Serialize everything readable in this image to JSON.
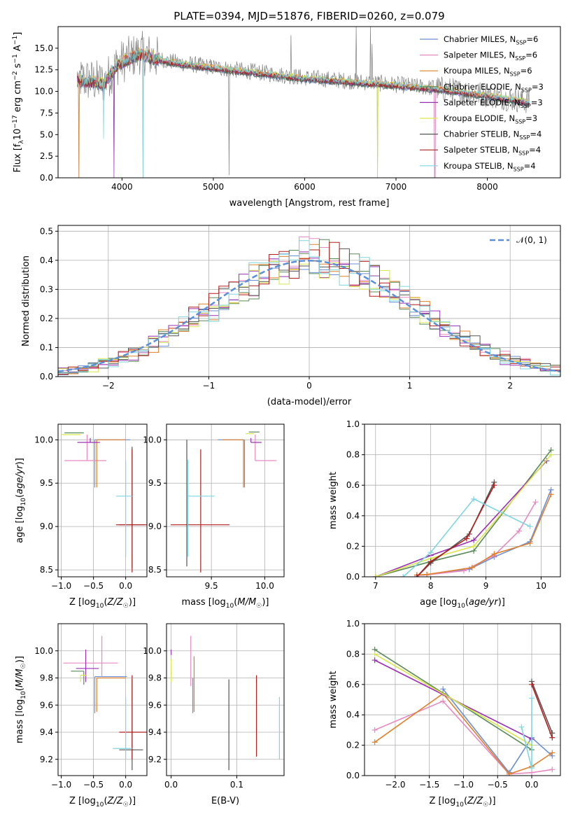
{
  "figure_title": "PLATE=0394, MJD=51876, FIBERID=0260, z=0.079",
  "legend_entries": [
    {
      "label": "Chabrier MILES, N",
      "sub": "SSP",
      "suffix": "=6",
      "color": "#6b8fd6"
    },
    {
      "label": "Salpeter MILES, N",
      "sub": "SSP",
      "suffix": "=6",
      "color": "#e78ac3"
    },
    {
      "label": "Kroupa MILES, N",
      "sub": "SSP",
      "suffix": "=6",
      "color": "#e0812a"
    },
    {
      "label": "Chabrier ELODIE, N",
      "sub": "SSP",
      "suffix": "=3",
      "color": "#5a8a5a"
    },
    {
      "label": "Salpeter ELODIE, N",
      "sub": "SSP",
      "suffix": "=3",
      "color": "#9b30b5"
    },
    {
      "label": "Kroupa ELODIE, N",
      "sub": "SSP",
      "suffix": "=3",
      "color": "#d9e64c"
    },
    {
      "label": "Chabrier STELIB, N",
      "sub": "SSP",
      "suffix": "=4",
      "color": "#555555"
    },
    {
      "label": "Salpeter STELIB, N",
      "sub": "SSP",
      "suffix": "=4",
      "color": "#b21e1e"
    },
    {
      "label": "Kroupa STELIB, N",
      "sub": "SSP",
      "suffix": "=4",
      "color": "#7fd6e0"
    }
  ],
  "chart_data": [
    {
      "id": "spectrum",
      "type": "line",
      "xlabel": "wavelength [Angstrom, rest frame]",
      "ylabel": "Flux [f_λ10^-17 erg cm^-2 s^-1 A^-1]",
      "xlim": [
        3300,
        8800
      ],
      "ylim": [
        0,
        17.5
      ],
      "xticks": [
        4000,
        5000,
        6000,
        7000,
        8000
      ],
      "yticks": [
        0.0,
        2.5,
        5.0,
        7.5,
        10.0,
        12.5,
        15.0
      ],
      "grid": false,
      "data_color": "#808080",
      "continuum": [
        [
          3500,
          11.5
        ],
        [
          3800,
          11.0
        ],
        [
          3950,
          13.2
        ],
        [
          4200,
          14.5
        ],
        [
          4500,
          13.5
        ],
        [
          5000,
          12.8
        ],
        [
          5500,
          12.2
        ],
        [
          6000,
          11.6
        ],
        [
          6500,
          11.2
        ],
        [
          7000,
          10.8
        ],
        [
          7500,
          10.3
        ],
        [
          8000,
          9.6
        ],
        [
          8450,
          8.8
        ]
      ],
      "dips": [
        [
          3526,
          0.0
        ],
        [
          3910,
          3.0
        ],
        [
          4230,
          0.0
        ],
        [
          5170,
          0.3
        ],
        [
          6800,
          0.0
        ],
        [
          7425,
          0.0
        ]
      ],
      "spikes": [
        [
          5850,
          16.5
        ],
        [
          6565,
          17.5
        ],
        [
          6720,
          17.5
        ],
        [
          6740,
          15.5
        ]
      ]
    },
    {
      "id": "residuals",
      "type": "line",
      "xlabel": "(data-model)/error",
      "ylabel": "Normed distribution",
      "xlim": [
        -2.5,
        2.5
      ],
      "ylim": [
        0,
        0.52
      ],
      "xticks": [
        -2,
        -1,
        0,
        1,
        2
      ],
      "yticks": [
        0.0,
        0.1,
        0.2,
        0.3,
        0.4,
        0.5
      ],
      "grid": true,
      "gaussian_label": "𝒩(0, 1)",
      "gaussian_color": "#5b8fd6",
      "bin_width": 0.1
    },
    {
      "id": "age_vs_Z",
      "type": "scatter",
      "xlabel": "Z [log10(Z/Z☉)]",
      "ylabel": "age  [log10(age/yr)]",
      "xlim": [
        -1.05,
        0.33
      ],
      "ylim": [
        8.42,
        10.18
      ],
      "xticks": [
        -1.0,
        -0.5,
        0.0
      ],
      "yticks": [
        8.5,
        9.0,
        9.5,
        10.0
      ],
      "grid": true,
      "points": [
        {
          "x": -0.48,
          "y": 10.0,
          "xerr": [
            0.0,
            0.55
          ],
          "yerr": [
            0.55,
            0.0
          ],
          "color": "#6b8fd6"
        },
        {
          "x": -0.6,
          "y": 9.76,
          "xerr": [
            0.35,
            0.3
          ],
          "yerr": [
            0.0,
            0.3
          ],
          "color": "#e78ac3"
        },
        {
          "x": -0.45,
          "y": 10.0,
          "xerr": [
            0.0,
            0.45
          ],
          "yerr": [
            0.55,
            0.0
          ],
          "color": "#e0812a"
        },
        {
          "x": -0.65,
          "y": 10.08,
          "xerr": [
            0.3,
            0.0
          ],
          "yerr": [
            0.0,
            0.0
          ],
          "color": "#5a8a5a"
        },
        {
          "x": -0.55,
          "y": 9.97,
          "xerr": [
            0.2,
            0.15
          ],
          "yerr": [
            0.0,
            0.05
          ],
          "color": "#9b30b5"
        },
        {
          "x": -0.7,
          "y": 10.06,
          "xerr": [
            0.3,
            0.0
          ],
          "yerr": [
            0.0,
            0.0
          ],
          "color": "#d9e64c"
        },
        {
          "x": 0.1,
          "y": 9.02,
          "xerr": [
            0.2,
            0.2
          ],
          "yerr": [
            0.5,
            0.9
          ],
          "color": "#555555"
        },
        {
          "x": 0.1,
          "y": 9.02,
          "xerr": [
            0.25,
            0.25
          ],
          "yerr": [
            0.55,
            0.87
          ],
          "color": "#b21e1e"
        },
        {
          "x": 0.0,
          "y": 9.35,
          "xerr": [
            0.15,
            0.1
          ],
          "yerr": [
            0.7,
            0.4
          ],
          "color": "#7fd6e0"
        }
      ]
    },
    {
      "id": "age_vs_mass",
      "type": "scatter",
      "xlabel": "mass [log10(M/M☉)]",
      "ylabel": "",
      "xlim": [
        9.08,
        10.18
      ],
      "ylim": [
        8.42,
        10.18
      ],
      "xticks": [
        9.5,
        10.0
      ],
      "yticks": [
        8.5,
        9.0,
        9.5,
        10.0
      ],
      "grid": true,
      "points": [
        {
          "x": 9.81,
          "y": 10.0,
          "xerr": [
            0.25,
            0.0
          ],
          "yerr": [
            0.55,
            0.0
          ],
          "color": "#6b8fd6"
        },
        {
          "x": 9.91,
          "y": 9.76,
          "xerr": [
            0.0,
            0.2
          ],
          "yerr": [
            0.0,
            0.3
          ],
          "color": "#e78ac3"
        },
        {
          "x": 9.8,
          "y": 10.0,
          "xerr": [
            0.2,
            0.0
          ],
          "yerr": [
            0.55,
            0.0
          ],
          "color": "#e0812a"
        },
        {
          "x": 9.85,
          "y": 10.09,
          "xerr": [
            0.0,
            0.1
          ],
          "yerr": [
            0.0,
            0.0
          ],
          "color": "#5a8a5a"
        },
        {
          "x": 9.87,
          "y": 9.97,
          "xerr": [
            0.0,
            0.1
          ],
          "yerr": [
            0.0,
            0.05
          ],
          "color": "#9b30b5"
        },
        {
          "x": 9.82,
          "y": 10.07,
          "xerr": [
            0.0,
            0.08
          ],
          "yerr": [
            0.0,
            0.0
          ],
          "color": "#d9e64c"
        },
        {
          "x": 9.27,
          "y": 9.02,
          "xerr": [
            0.0,
            0.0
          ],
          "yerr": [
            0.48,
            0.98
          ],
          "color": "#555555"
        },
        {
          "x": 9.4,
          "y": 9.02,
          "xerr": [
            0.28,
            0.27
          ],
          "yerr": [
            0.55,
            0.87
          ],
          "color": "#b21e1e"
        },
        {
          "x": 9.28,
          "y": 9.35,
          "xerr": [
            0.0,
            0.25
          ],
          "yerr": [
            0.7,
            0.42
          ],
          "color": "#7fd6e0"
        }
      ]
    },
    {
      "id": "mass_weight_vs_age",
      "type": "line",
      "xlabel": "age  [log10(age/yr)]",
      "ylabel": "mass weight",
      "xlim": [
        6.8,
        10.35
      ],
      "ylim": [
        0,
        1.0
      ],
      "xticks": [
        7,
        8,
        9,
        10
      ],
      "yticks": [
        0.0,
        0.2,
        0.4,
        0.6,
        0.8,
        1.0
      ],
      "grid": true,
      "series": [
        {
          "color": "#6b8fd6",
          "x": [
            7.75,
            7.93,
            8.7,
            9.15,
            9.8,
            10.18
          ],
          "y": [
            0.01,
            0.013,
            0.05,
            0.13,
            0.23,
            0.57
          ]
        },
        {
          "color": "#e78ac3",
          "x": [
            7.75,
            7.93,
            8.6,
            9.15,
            9.6,
            9.9
          ],
          "y": [
            0.01,
            0.013,
            0.04,
            0.14,
            0.3,
            0.49
          ]
        },
        {
          "color": "#e0812a",
          "x": [
            7.75,
            7.93,
            8.75,
            9.15,
            9.8,
            10.18
          ],
          "y": [
            0.012,
            0.015,
            0.06,
            0.15,
            0.22,
            0.54
          ]
        },
        {
          "color": "#5a8a5a",
          "x": [
            7.0,
            8.0,
            8.78,
            10.18
          ],
          "y": [
            0.0,
            0.1,
            0.17,
            0.83
          ]
        },
        {
          "color": "#9b30b5",
          "x": [
            7.0,
            8.0,
            8.78,
            10.1
          ],
          "y": [
            0.0,
            0.14,
            0.24,
            0.76
          ]
        },
        {
          "color": "#d9e64c",
          "x": [
            7.0,
            8.0,
            8.78,
            10.18
          ],
          "y": [
            0.0,
            0.12,
            0.2,
            0.8
          ]
        },
        {
          "color": "#555555",
          "x": [
            7.75,
            8.0,
            8.7,
            9.15
          ],
          "y": [
            0.0,
            0.09,
            0.28,
            0.62
          ]
        },
        {
          "color": "#b21e1e",
          "x": [
            7.75,
            8.0,
            8.65,
            9.15
          ],
          "y": [
            0.0,
            0.1,
            0.25,
            0.6
          ]
        },
        {
          "color": "#7fd6e0",
          "x": [
            7.5,
            8.0,
            8.78,
            9.8
          ],
          "y": [
            0.0,
            0.16,
            0.51,
            0.33
          ]
        }
      ]
    },
    {
      "id": "mass_vs_Z",
      "type": "scatter",
      "xlabel": "Z [log10(Z/Z☉)]",
      "ylabel": "mass [log10(M/M☉)]",
      "xlim": [
        -1.05,
        0.33
      ],
      "ylim": [
        9.08,
        10.2
      ],
      "xticks": [
        -1.0,
        -0.5,
        0.0
      ],
      "yticks": [
        9.2,
        9.4,
        9.6,
        9.8,
        10.0
      ],
      "grid": true,
      "points": [
        {
          "x": -0.48,
          "y": 9.81,
          "xerr": [
            0.0,
            0.5
          ],
          "yerr": [
            0.27,
            0.0
          ],
          "color": "#6b8fd6"
        },
        {
          "x": -0.37,
          "y": 9.91,
          "xerr": [
            0.6,
            0.25
          ],
          "yerr": [
            0.1,
            0.2
          ],
          "color": "#e78ac3"
        },
        {
          "x": -0.45,
          "y": 9.8,
          "xerr": [
            0.0,
            0.45
          ],
          "yerr": [
            0.25,
            0.0
          ],
          "color": "#e0812a"
        },
        {
          "x": -0.65,
          "y": 9.85,
          "xerr": [
            0.2,
            0.0
          ],
          "yerr": [
            0.1,
            0.0
          ],
          "color": "#5a8a5a"
        },
        {
          "x": -0.62,
          "y": 9.87,
          "xerr": [
            0.15,
            0.2
          ],
          "yerr": [
            0.1,
            0.14
          ],
          "color": "#9b30b5"
        },
        {
          "x": -0.7,
          "y": 9.82,
          "xerr": [
            0.0,
            0.1
          ],
          "yerr": [
            0.05,
            0.0
          ],
          "color": "#d9e64c"
        },
        {
          "x": 0.1,
          "y": 9.27,
          "xerr": [
            0.2,
            0.17
          ],
          "yerr": [
            0.15,
            0.52
          ],
          "color": "#555555"
        },
        {
          "x": 0.1,
          "y": 9.4,
          "xerr": [
            0.2,
            0.25
          ],
          "yerr": [
            0.2,
            0.42
          ],
          "color": "#b21e1e"
        },
        {
          "x": 0.0,
          "y": 9.28,
          "xerr": [
            0.2,
            0.1
          ],
          "yerr": [
            0.08,
            0.38
          ],
          "color": "#7fd6e0"
        }
      ]
    },
    {
      "id": "mass_vs_ebv",
      "type": "scatter",
      "xlabel": "E(B-V)",
      "ylabel": "",
      "xlim": [
        -0.007,
        0.172
      ],
      "ylim": [
        9.08,
        10.2
      ],
      "xticks": [
        0.0,
        0.1
      ],
      "yticks": [
        9.2,
        9.4,
        9.6,
        9.8,
        10.0
      ],
      "grid": true,
      "points": [
        {
          "x": 0.0,
          "y": 9.81,
          "xerr": [
            0,
            0
          ],
          "yerr": [
            0.0,
            0.09
          ],
          "color": "#6b8fd6"
        },
        {
          "x": 0.03,
          "y": 9.91,
          "xerr": [
            0,
            0
          ],
          "yerr": [
            0.17,
            0.2
          ],
          "color": "#e78ac3"
        },
        {
          "x": 0.035,
          "y": 9.8,
          "xerr": [
            0,
            0
          ],
          "yerr": [
            0.25,
            0.16
          ],
          "color": "#e0812a"
        },
        {
          "x": 0.0,
          "y": 9.82,
          "xerr": [
            0,
            0
          ],
          "yerr": [
            0.05,
            0.12
          ],
          "color": "#d9e64c"
        },
        {
          "x": 0.0,
          "y": 9.97,
          "xerr": [
            0,
            0
          ],
          "yerr": [
            0.0,
            0.04
          ],
          "color": "#9b30b5"
        },
        {
          "x": 0.033,
          "y": 9.8,
          "xerr": [
            0,
            0
          ],
          "yerr": [
            0.26,
            0.0
          ],
          "color": "#6b8fd6"
        },
        {
          "x": 0.088,
          "y": 9.45,
          "xerr": [
            0,
            0
          ],
          "yerr": [
            0.33,
            0.34
          ],
          "color": "#555555"
        },
        {
          "x": 0.13,
          "y": 9.5,
          "xerr": [
            0,
            0
          ],
          "yerr": [
            0.28,
            0.32
          ],
          "color": "#b21e1e"
        },
        {
          "x": 0.165,
          "y": 9.43,
          "xerr": [
            0,
            0
          ],
          "yerr": [
            0.23,
            0.23
          ],
          "color": "#7fd6e0"
        }
      ]
    },
    {
      "id": "mass_weight_vs_Z",
      "type": "line",
      "xlabel": "Z [log10(Z/Z☉)]",
      "ylabel": "mass weight",
      "xlim": [
        -2.45,
        0.42
      ],
      "ylim": [
        0,
        1.0
      ],
      "xticks": [
        -2.0,
        -1.5,
        -1.0,
        -0.5,
        0.0
      ],
      "yticks": [
        0.0,
        0.2,
        0.4,
        0.6,
        0.8,
        1.0
      ],
      "grid": true,
      "series": [
        {
          "color": "#6b8fd6",
          "x": [
            -1.3,
            -0.33,
            0.0,
            0.3
          ],
          "y": [
            0.57,
            0.02,
            0.25,
            0.13
          ]
        },
        {
          "color": "#e78ac3",
          "x": [
            -2.3,
            -1.3,
            -0.33,
            0.0,
            0.3
          ],
          "y": [
            0.3,
            0.49,
            0.01,
            0.02,
            0.04
          ]
        },
        {
          "color": "#e0812a",
          "x": [
            -2.3,
            -1.3,
            -0.33,
            0.0,
            0.3
          ],
          "y": [
            0.22,
            0.54,
            0.01,
            0.06,
            0.15
          ]
        },
        {
          "color": "#5a8a5a",
          "x": [
            -2.3,
            0.0
          ],
          "y": [
            0.83,
            0.17
          ]
        },
        {
          "color": "#9b30b5",
          "x": [
            -2.3,
            0.0
          ],
          "y": [
            0.76,
            0.24
          ]
        },
        {
          "color": "#d9e64c",
          "x": [
            -2.3,
            0.0
          ],
          "y": [
            0.8,
            0.2
          ]
        },
        {
          "color": "#555555",
          "x": [
            0.0,
            0.3
          ],
          "y": [
            0.62,
            0.28
          ]
        },
        {
          "color": "#b21e1e",
          "x": [
            0.0,
            0.3
          ],
          "y": [
            0.6,
            0.25
          ]
        },
        {
          "color": "#7fd6e0",
          "x": [
            -0.15,
            0.0,
            0.0
          ],
          "y": [
            0.32,
            0.05,
            0.51
          ]
        }
      ]
    }
  ]
}
